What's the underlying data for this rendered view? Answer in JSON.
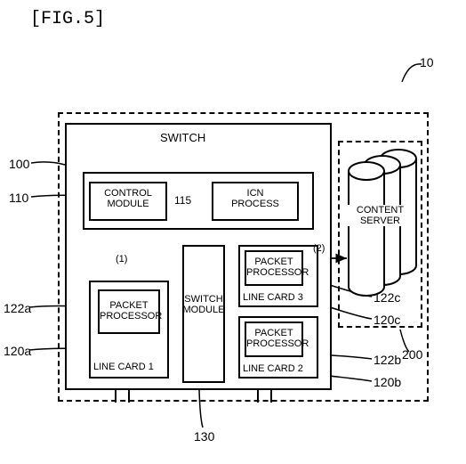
{
  "figure_title": "[FIG.5]",
  "colors": {
    "stroke": "#000000",
    "bg": "#ffffff"
  },
  "switch": {
    "title": "SWITCH"
  },
  "control_module": {
    "label": "CONTROL\nMODULE",
    "ref": "110"
  },
  "icn_process": {
    "label": "ICN\nPROCESS",
    "ref": "115"
  },
  "switch_module": {
    "label": "SWITCH\nMODULE",
    "ref": "130"
  },
  "line_card_1": {
    "label": "LINE CARD 1",
    "ref": "120a"
  },
  "line_card_2": {
    "label": "LINE CARD 2",
    "ref": "120b"
  },
  "line_card_3": {
    "label": "LINE CARD 3",
    "ref": "120c"
  },
  "packet_processor_1": {
    "label": "PACKET\nPROCESSOR",
    "ref": "122a"
  },
  "packet_processor_2": {
    "label": "PACKET\nPROCESSOR",
    "ref": "122b"
  },
  "packet_processor_3": {
    "label": "PACKET\nPROCESSOR",
    "ref": "122c"
  },
  "content_server": {
    "label": "CONTENT\nSERVER",
    "ref": "200"
  },
  "switch_ref": "100",
  "group_ref": "10",
  "flow1": "(1)",
  "flow2": "(2)"
}
